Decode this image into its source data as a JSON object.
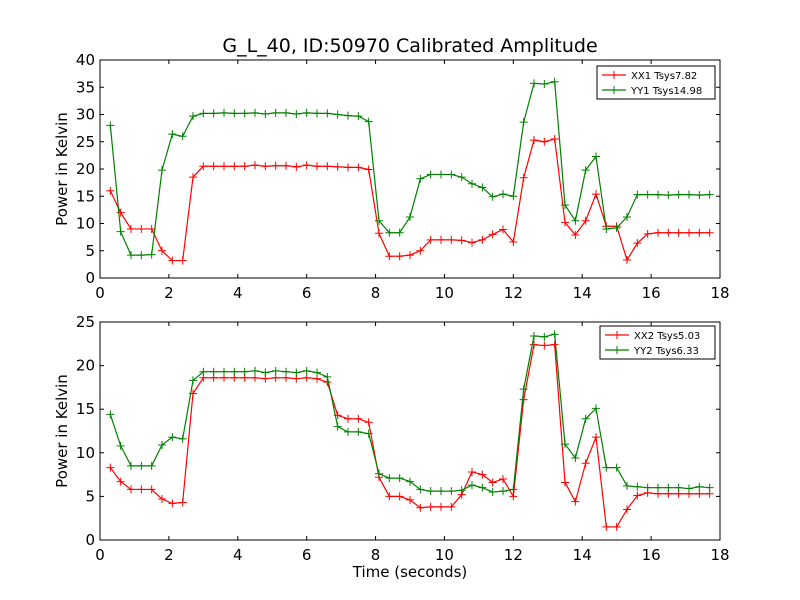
{
  "chart_data": {
    "title": "G_L_40, ID:50970 Calibrated Amplitude",
    "xlabel": "Time (seconds)",
    "x": [
      0.3,
      0.6,
      0.9,
      1.2,
      1.5,
      1.8,
      2.1,
      2.4,
      2.7,
      3.0,
      3.3,
      3.6,
      3.9,
      4.2,
      4.5,
      4.8,
      5.1,
      5.4,
      5.7,
      6.0,
      6.3,
      6.6,
      6.9,
      7.2,
      7.5,
      7.8,
      8.1,
      8.4,
      8.7,
      9.0,
      9.3,
      9.6,
      9.9,
      10.2,
      10.5,
      10.8,
      11.1,
      11.4,
      11.7,
      12.0,
      12.3,
      12.6,
      12.9,
      13.2,
      13.5,
      13.8,
      14.1,
      14.4,
      14.7,
      15.0,
      15.3,
      15.6,
      15.9,
      16.2,
      16.5,
      16.8,
      17.1,
      17.4,
      17.7
    ],
    "panels": [
      {
        "type": "line",
        "ylabel": "Power in Kelvin",
        "xlim": [
          0,
          18
        ],
        "ylim": [
          0,
          40
        ],
        "xticks": [
          0,
          2,
          4,
          6,
          8,
          10,
          12,
          14,
          16,
          18
        ],
        "yticks": [
          0,
          5,
          10,
          15,
          20,
          25,
          30,
          35,
          40
        ],
        "grid": false,
        "legend_position": "top-right",
        "series": [
          {
            "name": "XX1 Tsys7.82",
            "color": "#ff0000",
            "values": [
              16,
              12,
              9,
              9,
              9,
              5,
              3.2,
              3.2,
              18.5,
              20.5,
              20.5,
              20.5,
              20.5,
              20.5,
              20.7,
              20.5,
              20.6,
              20.6,
              20.4,
              20.7,
              20.5,
              20.5,
              20.4,
              20.3,
              20.3,
              19.9,
              8.2,
              4,
              4,
              4.2,
              5,
              7,
              7,
              7,
              6.9,
              6.5,
              7,
              8,
              8.9,
              6.6,
              18.4,
              25.3,
              25,
              25.5,
              10.2,
              7.9,
              10.5,
              15.4,
              9.5,
              9.5,
              3.3,
              6.4,
              8.1,
              8.3,
              8.3,
              8.3,
              8.3,
              8.3,
              8.3
            ]
          },
          {
            "name": "YY1 Tsys14.98",
            "color": "#008000",
            "values": [
              28,
              8.5,
              4.2,
              4.2,
              4.3,
              19.8,
              26.4,
              26,
              29.7,
              30.2,
              30.2,
              30.3,
              30.2,
              30.2,
              30.3,
              30.1,
              30.3,
              30.3,
              30.1,
              30.3,
              30.2,
              30.2,
              30,
              29.8,
              29.7,
              28.7,
              10.5,
              8.3,
              8.3,
              11.2,
              18.2,
              19,
              19,
              19,
              18.5,
              17.3,
              16.6,
              14.9,
              15.4,
              15,
              28.6,
              35.7,
              35.6,
              36,
              13.4,
              10.5,
              19.8,
              22.3,
              9,
              9.2,
              11.2,
              15.3,
              15.3,
              15.3,
              15.2,
              15.3,
              15.3,
              15.2,
              15.3
            ]
          }
        ]
      },
      {
        "type": "line",
        "ylabel": "Power in Kelvin",
        "xlim": [
          0,
          18
        ],
        "ylim": [
          0,
          25
        ],
        "xticks": [
          0,
          2,
          4,
          6,
          8,
          10,
          12,
          14,
          16,
          18
        ],
        "yticks": [
          0,
          5,
          10,
          15,
          20,
          25
        ],
        "grid": false,
        "legend_position": "top-right",
        "series": [
          {
            "name": "XX2 Tsys5.03",
            "color": "#ff0000",
            "values": [
              8.3,
              6.7,
              5.8,
              5.8,
              5.8,
              4.7,
              4.2,
              4.3,
              16.8,
              18.6,
              18.6,
              18.6,
              18.6,
              18.6,
              18.6,
              18.5,
              18.6,
              18.6,
              18.5,
              18.6,
              18.5,
              18.1,
              14.3,
              13.9,
              13.9,
              13.5,
              7.2,
              5,
              5,
              4.6,
              3.7,
              3.8,
              3.8,
              3.8,
              5.2,
              7.8,
              7.5,
              6.6,
              7,
              5,
              16.1,
              22.4,
              22.3,
              22.4,
              6.6,
              4.4,
              8.8,
              11.8,
              1.5,
              1.5,
              3.5,
              5.1,
              5.4,
              5.3,
              5.3,
              5.3,
              5.3,
              5.3,
              5.3
            ]
          },
          {
            "name": "YY2 Tsys6.33",
            "color": "#008000",
            "values": [
              14.4,
              10.8,
              8.5,
              8.5,
              8.5,
              10.9,
              11.8,
              11.6,
              18.3,
              19.3,
              19.3,
              19.3,
              19.3,
              19.3,
              19.4,
              19.2,
              19.4,
              19.3,
              19.2,
              19.4,
              19.2,
              18.7,
              13,
              12.4,
              12.4,
              12.2,
              7.6,
              7.1,
              7.1,
              6.7,
              5.8,
              5.6,
              5.6,
              5.6,
              5.7,
              6.3,
              6,
              5.5,
              5.6,
              5.8,
              17.3,
              23.4,
              23.3,
              23.6,
              11,
              9.4,
              13.9,
              15.1,
              8.3,
              8.3,
              6.2,
              6.1,
              6,
              6,
              6,
              6,
              5.9,
              6.1,
              6
            ]
          }
        ]
      }
    ]
  }
}
